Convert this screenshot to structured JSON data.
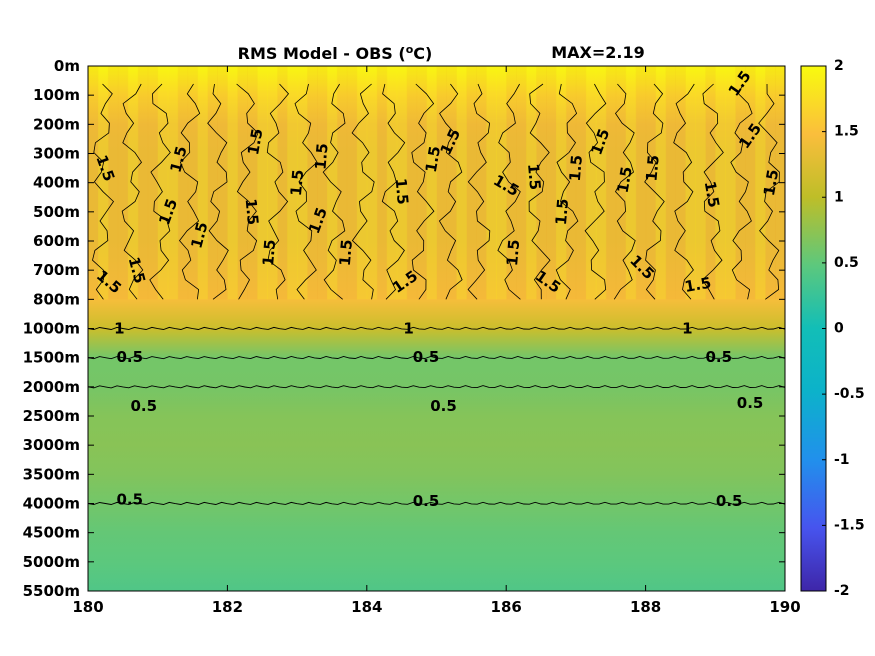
{
  "chart_data": {
    "type": "heatmap",
    "title": "RMS Model - OBS (",
    "title_unit_sup": "o",
    "title_unit": "C)",
    "max_label": "MAX=2.19",
    "xlabel": "",
    "ylabel": "",
    "xlim": [
      180,
      190
    ],
    "x_ticks": [
      "180",
      "182",
      "184",
      "186",
      "188",
      "190"
    ],
    "y_ticks": [
      "0m",
      "100m",
      "200m",
      "300m",
      "400m",
      "500m",
      "600m",
      "700m",
      "800m",
      "1000m",
      "1500m",
      "2000m",
      "2500m",
      "3000m",
      "3500m",
      "4000m",
      "4500m",
      "5000m",
      "5500m"
    ],
    "depth_levels_m": [
      0,
      100,
      200,
      300,
      400,
      500,
      600,
      700,
      800,
      1000,
      1500,
      2000,
      2500,
      3000,
      3500,
      4000,
      4500,
      5000,
      5500
    ],
    "mean_rms_by_level": [
      1.95,
      1.65,
      1.4,
      1.35,
      1.35,
      1.35,
      1.35,
      1.4,
      1.45,
      1.1,
      0.6,
      0.62,
      0.7,
      0.72,
      0.68,
      0.6,
      0.52,
      0.48,
      0.4
    ],
    "colorbar": {
      "range": [
        -2,
        2
      ],
      "ticks": [
        "-2",
        "-1.5",
        "-1",
        "-0.5",
        "0",
        "0.5",
        "1",
        "1.5",
        "2"
      ]
    },
    "contours": [
      {
        "level": "1.5",
        "depth_range_m": [
          0,
          800
        ]
      },
      {
        "level": "1",
        "depth_m": 1000
      },
      {
        "level": "0.5",
        "depth_m": 1500
      },
      {
        "level": "0.5",
        "depth_m": 2000
      },
      {
        "level": "0.5",
        "depth_m": 4000
      }
    ],
    "contour_labels": [
      {
        "text": "1.5",
        "x": 180.25,
        "depth_m": 350,
        "rot": 70
      },
      {
        "text": "1.5",
        "x": 181.3,
        "depth_m": 320,
        "rot": -75
      },
      {
        "text": "1.5",
        "x": 182.4,
        "depth_m": 260,
        "rot": -80
      },
      {
        "text": "1.5",
        "x": 183.0,
        "depth_m": 400,
        "rot": -85
      },
      {
        "text": "1.5",
        "x": 183.35,
        "depth_m": 310,
        "rot": -85
      },
      {
        "text": "1.5",
        "x": 182.35,
        "depth_m": 500,
        "rot": 85
      },
      {
        "text": "1.5",
        "x": 181.15,
        "depth_m": 500,
        "rot": -70
      },
      {
        "text": "1.5",
        "x": 181.6,
        "depth_m": 580,
        "rot": -75
      },
      {
        "text": "1.5",
        "x": 182.6,
        "depth_m": 640,
        "rot": -85
      },
      {
        "text": "1.5",
        "x": 183.3,
        "depth_m": 530,
        "rot": -70
      },
      {
        "text": "1.5",
        "x": 183.7,
        "depth_m": 640,
        "rot": -85
      },
      {
        "text": "1.5",
        "x": 180.7,
        "depth_m": 700,
        "rot": 75
      },
      {
        "text": "1.5",
        "x": 180.3,
        "depth_m": 740,
        "rot": 40
      },
      {
        "text": "1.5",
        "x": 184.5,
        "depth_m": 430,
        "rot": 85
      },
      {
        "text": "1.5",
        "x": 184.95,
        "depth_m": 320,
        "rot": -80
      },
      {
        "text": "1.5",
        "x": 185.2,
        "depth_m": 260,
        "rot": -65
      },
      {
        "text": "1.5",
        "x": 186.0,
        "depth_m": 410,
        "rot": 30
      },
      {
        "text": "1.5",
        "x": 186.4,
        "depth_m": 380,
        "rot": 85
      },
      {
        "text": "1.5",
        "x": 186.8,
        "depth_m": 500,
        "rot": -85
      },
      {
        "text": "1.5",
        "x": 186.1,
        "depth_m": 640,
        "rot": -85
      },
      {
        "text": "1.5",
        "x": 186.6,
        "depth_m": 740,
        "rot": 35
      },
      {
        "text": "1.5",
        "x": 184.55,
        "depth_m": 740,
        "rot": -35
      },
      {
        "text": "1.5",
        "x": 187.0,
        "depth_m": 350,
        "rot": -85
      },
      {
        "text": "1.5",
        "x": 187.35,
        "depth_m": 260,
        "rot": -70
      },
      {
        "text": "1.5",
        "x": 187.7,
        "depth_m": 390,
        "rot": -80
      },
      {
        "text": "1.5",
        "x": 188.1,
        "depth_m": 350,
        "rot": -85
      },
      {
        "text": "1.5",
        "x": 187.95,
        "depth_m": 690,
        "rot": 45
      },
      {
        "text": "1.5",
        "x": 188.95,
        "depth_m": 440,
        "rot": 80
      },
      {
        "text": "1.5",
        "x": 189.5,
        "depth_m": 240,
        "rot": -55
      },
      {
        "text": "1.5",
        "x": 189.8,
        "depth_m": 400,
        "rot": -80
      },
      {
        "text": "1.5",
        "x": 189.35,
        "depth_m": 60,
        "rot": -55
      },
      {
        "text": "1.5",
        "x": 188.75,
        "depth_m": 750,
        "rot": -10
      },
      {
        "text": "1",
        "x": 180.45,
        "depth_m": 1000,
        "rot": 0
      },
      {
        "text": "1",
        "x": 184.6,
        "depth_m": 1000,
        "rot": 0
      },
      {
        "text": "1",
        "x": 188.6,
        "depth_m": 1000,
        "rot": 0
      },
      {
        "text": "0.5",
        "x": 180.6,
        "depth_m": 1490,
        "rot": 0
      },
      {
        "text": "0.5",
        "x": 184.85,
        "depth_m": 1490,
        "rot": 0
      },
      {
        "text": "0.5",
        "x": 189.05,
        "depth_m": 1490,
        "rot": 0
      },
      {
        "text": "0.5",
        "x": 180.8,
        "depth_m": 2330,
        "rot": 0
      },
      {
        "text": "0.5",
        "x": 185.1,
        "depth_m": 2330,
        "rot": 0
      },
      {
        "text": "0.5",
        "x": 189.5,
        "depth_m": 2280,
        "rot": 0
      },
      {
        "text": "0.5",
        "x": 180.6,
        "depth_m": 3930,
        "rot": 0
      },
      {
        "text": "0.5",
        "x": 184.85,
        "depth_m": 3960,
        "rot": 0
      },
      {
        "text": "0.5",
        "x": 189.2,
        "depth_m": 3960,
        "rot": 0
      }
    ],
    "grid": false,
    "legend": "none"
  }
}
